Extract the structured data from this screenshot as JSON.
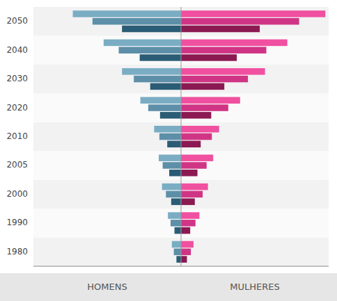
{
  "chart_data": {
    "type": "bar",
    "orientation": "horizontal",
    "tick_labels": "y",
    "categories": [
      "1980",
      "1990",
      "2000",
      "2005",
      "2010",
      "2020",
      "2030",
      "2040",
      "2050"
    ],
    "xlim": [
      -22.5,
      22.5
    ],
    "annotations": [
      "HOMENS",
      "MULHERES"
    ],
    "series": [
      {
        "color": "#7aadc4",
        "values": [
          -1.4,
          -2.0,
          -2.9,
          -3.4,
          -4.1,
          -6.2,
          -9.0,
          -11.8,
          -16.5
        ]
      },
      {
        "color": "#5d8fa8",
        "values": [
          -1.1,
          -1.6,
          -2.3,
          -2.8,
          -3.3,
          -5.0,
          -7.2,
          -9.5,
          -13.5
        ]
      },
      {
        "color": "#2b5c75",
        "values": [
          -0.7,
          -1.0,
          -1.5,
          -1.8,
          -2.1,
          -3.2,
          -4.7,
          -6.3,
          -9.0
        ]
      },
      {
        "color": "#f050a0",
        "values": [
          1.9,
          2.8,
          4.1,
          4.9,
          5.8,
          9.0,
          12.8,
          16.2,
          22.0
        ]
      },
      {
        "color": "#d03585",
        "values": [
          1.5,
          2.2,
          3.3,
          3.9,
          4.7,
          7.2,
          10.2,
          13.0,
          18.0
        ]
      },
      {
        "color": "#8c1a52",
        "values": [
          0.9,
          1.4,
          2.1,
          2.5,
          3.0,
          4.6,
          6.6,
          8.5,
          12.0
        ]
      }
    ]
  }
}
